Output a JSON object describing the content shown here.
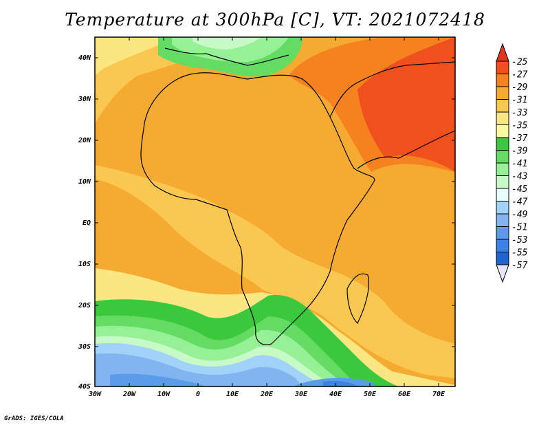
{
  "title": "Temperature at 300hPa [C], VT: 2021072418",
  "credit": "GrADS: IGES/COLA",
  "lat_labels": [
    "40N",
    "30N",
    "20N",
    "10N",
    "EQ",
    "10S",
    "20S",
    "30S",
    "40S"
  ],
  "lon_labels": [
    "30W",
    "20W",
    "10W",
    "0",
    "10E",
    "20E",
    "30E",
    "40E",
    "50E",
    "60E",
    "70E"
  ],
  "colorbar": {
    "levels": [
      "-25",
      "-27",
      "-29",
      "-31",
      "-33",
      "-35",
      "-37",
      "-39",
      "-41",
      "-43",
      "-45",
      "-47",
      "-49",
      "-51",
      "-53",
      "-55",
      "-57"
    ],
    "colors": [
      "#f0501e",
      "#f5821e",
      "#f5aa32",
      "#fac850",
      "#fae682",
      "#fafaa0",
      "#3cc83c",
      "#64dc64",
      "#96f096",
      "#c8fac8",
      "#e6ffff",
      "#a0d2fa",
      "#82b4f0",
      "#5a9bea",
      "#3c82e6",
      "#1e64d2",
      "#1446be",
      "#0a1e82"
    ],
    "top_arrow_color": "#e6321e",
    "bottom_arrow_color": "#e6e6fa"
  }
}
